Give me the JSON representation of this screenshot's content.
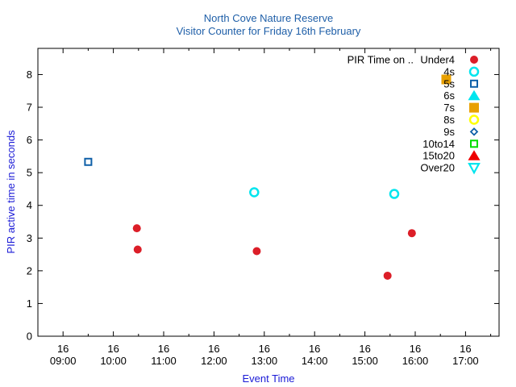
{
  "chart_data": {
    "type": "scatter",
    "title": "North Cove Nature Reserve",
    "subtitle": "Visitor Counter for Friday 16th February",
    "xlabel": "Event Time",
    "ylabel": "PIR active time in seconds",
    "xlim": [
      "08:30",
      "17:40"
    ],
    "ylim": [
      0,
      8.8
    ],
    "yticks": [
      0,
      1,
      2,
      3,
      4,
      5,
      6,
      7,
      8
    ],
    "xticks": [
      {
        "day": "16",
        "time": "09:00"
      },
      {
        "day": "16",
        "time": "10:00"
      },
      {
        "day": "16",
        "time": "11:00"
      },
      {
        "day": "16",
        "time": "12:00"
      },
      {
        "day": "16",
        "time": "13:00"
      },
      {
        "day": "16",
        "time": "14:00"
      },
      {
        "day": "16",
        "time": "15:00"
      },
      {
        "day": "16",
        "time": "16:00"
      },
      {
        "day": "16",
        "time": "17:00"
      }
    ],
    "grid": false,
    "legend_position": "top-right",
    "legend_title": "PIR Time on ..",
    "series": [
      {
        "name": "Under4",
        "marker": "circle-filled",
        "color": "#dc1e28",
        "points": [
          {
            "x": "10:28",
            "y": 3.3
          },
          {
            "x": "10:29",
            "y": 2.65
          },
          {
            "x": "12:51",
            "y": 2.6
          },
          {
            "x": "15:27",
            "y": 1.85
          },
          {
            "x": "15:56",
            "y": 3.15
          }
        ]
      },
      {
        "name": "4s",
        "marker": "circle-open",
        "color": "#00e5ee",
        "points": [
          {
            "x": "12:48",
            "y": 4.4
          },
          {
            "x": "15:35",
            "y": 4.35
          }
        ]
      },
      {
        "name": "5s",
        "marker": "square-open",
        "color": "#0f60a8",
        "points": [
          {
            "x": "09:30",
            "y": 5.33
          }
        ]
      },
      {
        "name": "6s",
        "marker": "triangle-up-filled",
        "color": "#00e5ee",
        "points": []
      },
      {
        "name": "7s",
        "marker": "square-filled",
        "color": "#e8a000",
        "points": [
          {
            "x": "16:37",
            "y": 7.85
          }
        ]
      },
      {
        "name": "8s",
        "marker": "circle-open",
        "color": "#ffff00",
        "points": []
      },
      {
        "name": "9s",
        "marker": "diamond-open",
        "color": "#0f60a8",
        "points": []
      },
      {
        "name": "10to14",
        "marker": "square-open",
        "color": "#00dd00",
        "points": []
      },
      {
        "name": "15to20",
        "marker": "triangle-up-filled",
        "color": "#ee0000",
        "points": []
      },
      {
        "name": "Over20",
        "marker": "triangle-down-open",
        "color": "#00e5ee",
        "points": []
      }
    ]
  }
}
